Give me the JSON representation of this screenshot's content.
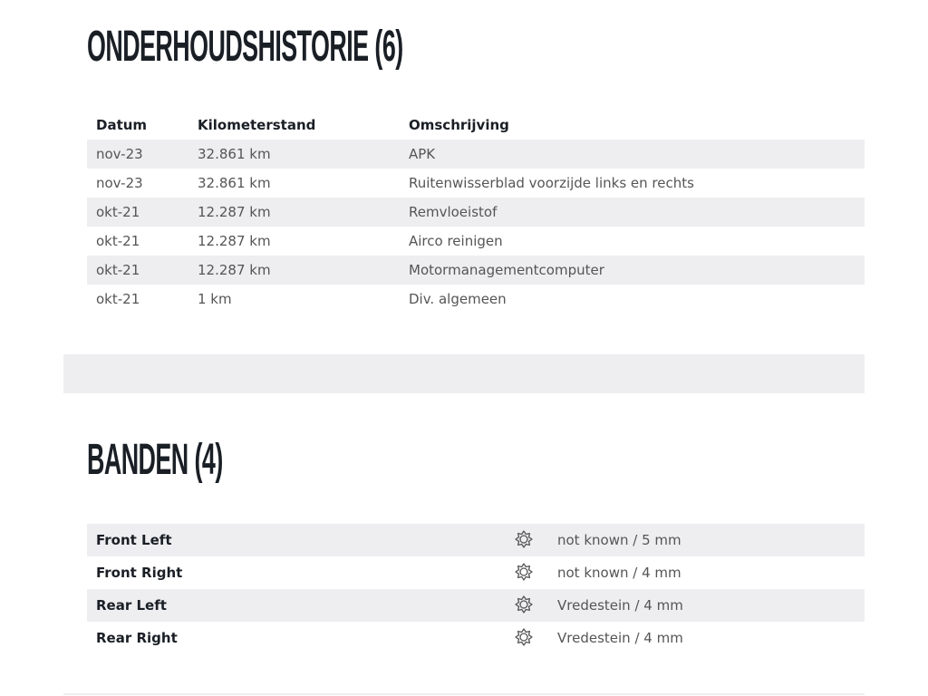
{
  "maintenance": {
    "title": "ONDERHOUDSHISTORIE (6)",
    "columns": [
      "Datum",
      "Kilometerstand",
      "Omschrijving"
    ],
    "rows": [
      [
        "nov-23",
        "32.861 km",
        "APK"
      ],
      [
        "nov-23",
        "32.861 km",
        "Ruitenwisserblad voorzijde links en rechts"
      ],
      [
        "okt-21",
        "12.287 km",
        "Remvloeistof"
      ],
      [
        "okt-21",
        "12.287 km",
        "Airco reinigen"
      ],
      [
        "okt-21",
        "12.287 km",
        "Motormanagementcomputer"
      ],
      [
        "okt-21",
        "1 km",
        "Div. algemeen"
      ]
    ]
  },
  "tires": {
    "title": "BANDEN (4)",
    "icon": "tire-gear-icon",
    "rows": [
      {
        "position": "Front Left",
        "value": "not known / 5 mm"
      },
      {
        "position": "Front Right",
        "value": "not known / 4 mm"
      },
      {
        "position": "Rear Left",
        "value": "Vredestein / 4 mm"
      },
      {
        "position": "Rear Right",
        "value": "Vredestein / 4 mm"
      }
    ]
  }
}
